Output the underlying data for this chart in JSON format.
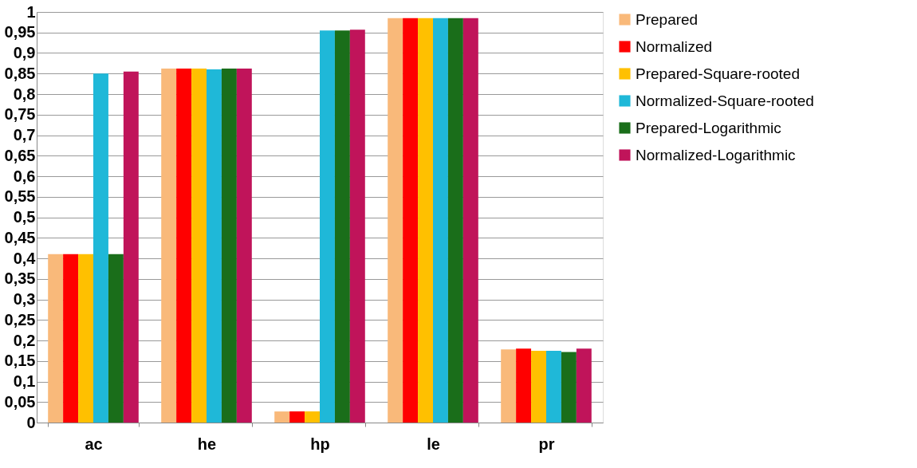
{
  "chart_data": {
    "type": "bar",
    "categories": [
      "ac",
      "he",
      "hp",
      "le",
      "pr"
    ],
    "series": [
      {
        "name": "Prepared",
        "color": "#f9b97a",
        "values": [
          0.41,
          0.862,
          0.027,
          0.985,
          0.178
        ]
      },
      {
        "name": "Normalized",
        "color": "#ff0000",
        "values": [
          0.41,
          0.862,
          0.027,
          0.985,
          0.18
        ]
      },
      {
        "name": "Prepared-Square-rooted",
        "color": "#ffc000",
        "values": [
          0.41,
          0.862,
          0.027,
          0.985,
          0.175
        ]
      },
      {
        "name": "Normalized-Square-rooted",
        "color": "#1fb8d8",
        "values": [
          0.85,
          0.86,
          0.955,
          0.985,
          0.175
        ]
      },
      {
        "name": "Prepared-Logarithmic",
        "color": "#1a6e1a",
        "values": [
          0.41,
          0.862,
          0.955,
          0.985,
          0.172
        ]
      },
      {
        "name": "Normalized-Logarithmic",
        "color": "#c0145a",
        "values": [
          0.855,
          0.862,
          0.957,
          0.985,
          0.18
        ]
      }
    ],
    "ylim": [
      0,
      1
    ],
    "yticks": [
      0,
      {
        "value": 0.05,
        "label": "0,05"
      },
      {
        "value": 0.1,
        "label": "0,1"
      },
      {
        "value": 0.15,
        "label": "0,15"
      },
      {
        "value": 0.2,
        "label": "0,2"
      },
      {
        "value": 0.25,
        "label": "0,25"
      },
      {
        "value": 0.3,
        "label": "0,3"
      },
      {
        "value": 0.35,
        "label": "0,35"
      },
      {
        "value": 0.4,
        "label": "0,4"
      },
      {
        "value": 0.45,
        "label": "0,45"
      },
      {
        "value": 0.5,
        "label": "0,5"
      },
      {
        "value": 0.55,
        "label": "0,55"
      },
      {
        "value": 0.6,
        "label": "0,6"
      },
      {
        "value": 0.65,
        "label": "0,65"
      },
      {
        "value": 0.7,
        "label": "0,7"
      },
      {
        "value": 0.75,
        "label": "0,75"
      },
      {
        "value": 0.8,
        "label": "0,8"
      },
      {
        "value": 0.85,
        "label": "0,85"
      },
      {
        "value": 0.9,
        "label": "0,9"
      },
      {
        "value": 0.95,
        "label": "0,95"
      },
      1
    ],
    "grid": "y",
    "legend": "right"
  }
}
